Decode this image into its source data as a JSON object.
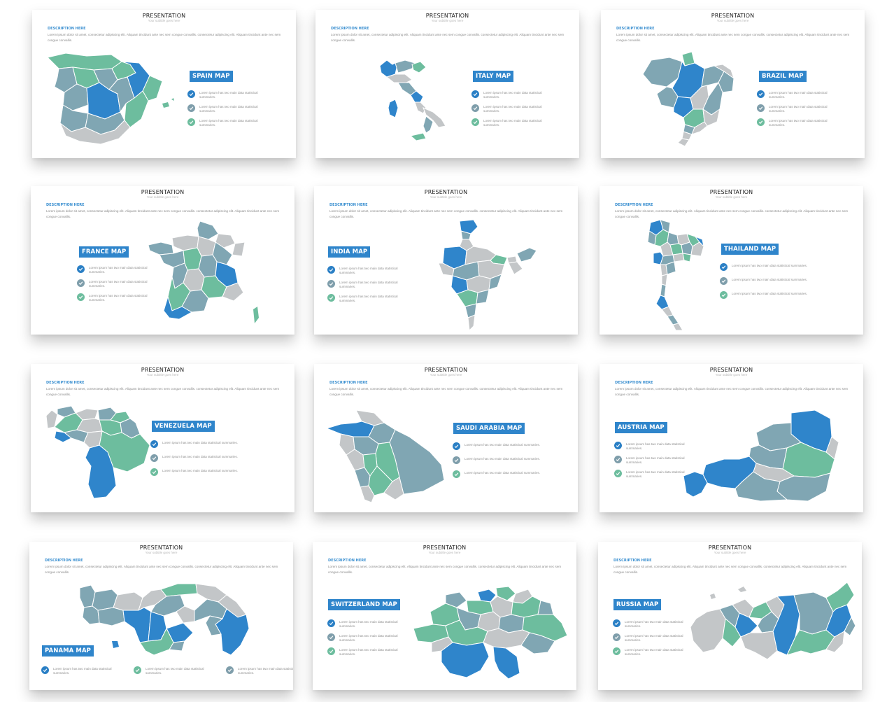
{
  "colors": {
    "blue": "#2f85cb",
    "green": "#6dbd9e",
    "slate": "#80a6b3",
    "gray": "#c3c6c8",
    "check_blue": "#2a7fc5",
    "check_slate": "#7f9eab",
    "check_green": "#6dbd9e"
  },
  "common": {
    "title": "PRESENTATION",
    "subtitle": "Your subtitle goes here",
    "description_heading": "DESCRIPTION HERE",
    "description": "Lorem ipsum dolor sit amet, consectetur adipiscing elit. Aliquam tincidunt ante nec sem congue convallis. consectetur adipiscing elit. Aliquam tincidunt ante nec sem congue convallis."
  },
  "slides": [
    {
      "map_label": "SPAIN MAP",
      "map_icon": "spain-map-icon",
      "checks": [
        "Lorem ipsum has two main data statistical summaries.",
        "Lorem ipsum has two main data statistical summaries.",
        "Lorem ipsum has two main data statistical summaries."
      ]
    },
    {
      "map_label": "ITALY MAP",
      "map_icon": "italy-map-icon",
      "checks": [
        "Lorem ipsum has two main data statistical summaries.",
        "Lorem ipsum has two main data statistical summaries.",
        "Lorem ipsum has two main data statistical summaries."
      ]
    },
    {
      "map_label": "BRAZIL MAP",
      "map_icon": "brazil-map-icon",
      "checks": [
        "Lorem ipsum has two main data statistical summaries.",
        "Lorem ipsum has two main data statistical summaries.",
        "Lorem ipsum has two main data statistical summaries."
      ]
    },
    {
      "map_label": "FRANCE MAP",
      "map_icon": "france-map-icon",
      "checks": [
        "Lorem ipsum has two main data statistical summaries.",
        "Lorem ipsum has two main data statistical summaries.",
        "Lorem ipsum has two main data statistical summaries."
      ]
    },
    {
      "map_label": "INDIA MAP",
      "map_icon": "india-map-icon",
      "checks": [
        "Lorem ipsum has two main data statistical summaries.",
        "Lorem ipsum has two main data statistical summaries.",
        "Lorem ipsum has two main data statistical summaries."
      ]
    },
    {
      "map_label": "THAILAND MAP",
      "map_icon": "thailand-map-icon",
      "checks": [
        "Lorem ipsum has two main data statistical summaries.",
        "Lorem ipsum has two main data statistical summaries.",
        "Lorem ipsum has two main data statistical summaries."
      ]
    },
    {
      "map_label": "VENEZUELA MAP",
      "map_icon": "venezuela-map-icon",
      "checks": [
        "Lorem ipsum has two main data statistical summaries.",
        "Lorem ipsum has two main data statistical summaries.",
        "Lorem ipsum has two main data statistical summaries."
      ]
    },
    {
      "map_label": "SAUDI ARABIA MAP",
      "map_icon": "saudi-arabia-map-icon",
      "checks": [
        "Lorem ipsum has two main data statistical summaries.",
        "Lorem ipsum has two main data statistical summaries.",
        "Lorem ipsum has two main data statistical summaries."
      ]
    },
    {
      "map_label": "AUSTRIA MAP",
      "map_icon": "austria-map-icon",
      "checks": [
        "Lorem ipsum has two main data statistical summaries.",
        "Lorem ipsum has two main data statistical summaries.",
        "Lorem ipsum has two main data statistical summaries."
      ]
    },
    {
      "map_label": "PANAMA MAP",
      "map_icon": "panama-map-icon",
      "checks": [
        "Lorem ipsum has two main data statistical summaries.",
        "Lorem ipsum has two main data statistical summaries.",
        "Lorem ipsum has two main data statistical summaries."
      ]
    },
    {
      "map_label": "SWITZERLAND MAP",
      "map_icon": "switzerland-map-icon",
      "checks": [
        "Lorem ipsum has two main data statistical summaries.",
        "Lorem ipsum has two main data statistical summaries.",
        "Lorem ipsum has two main data statistical summaries."
      ]
    },
    {
      "map_label": "RUSSIA MAP",
      "map_icon": "russia-map-icon",
      "checks": [
        "Lorem ipsum has two main data statistical summaries.",
        "Lorem ipsum has two main data statistical summaries.",
        "Lorem ipsum has two main data statistical summaries."
      ]
    }
  ]
}
